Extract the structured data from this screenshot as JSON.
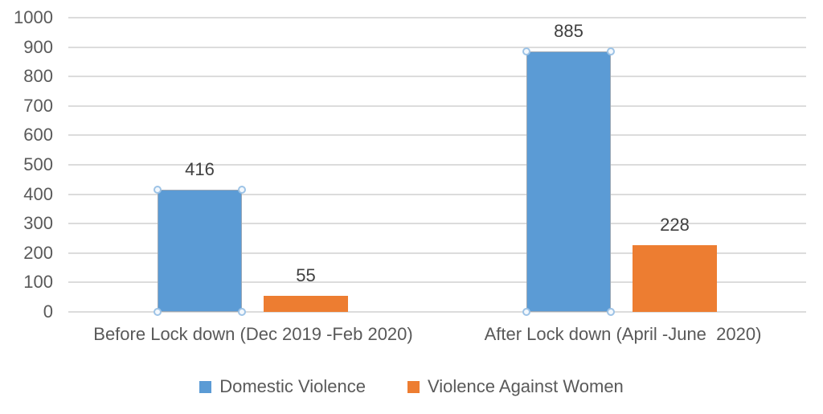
{
  "chart_data": {
    "type": "bar",
    "categories": [
      "Before Lock down (Dec 2019 -Feb 2020)",
      "After Lock down (April -June  2020)"
    ],
    "series": [
      {
        "name": "Domestic Violence",
        "values": [
          416,
          885
        ],
        "color": "#5B9BD5",
        "selected": true
      },
      {
        "name": "Violence Against Women",
        "values": [
          55,
          228
        ],
        "color": "#ED7D31",
        "selected": false
      }
    ],
    "data_labels": {
      "Domestic Violence": [
        "416",
        "885"
      ],
      "Violence Against Women": [
        "55",
        "228"
      ]
    },
    "ylim": [
      0,
      1000
    ],
    "ytick_step": 100,
    "yticks": [
      "0",
      "100",
      "200",
      "300",
      "400",
      "500",
      "600",
      "700",
      "800",
      "900",
      "1000"
    ],
    "grid": true,
    "legend_position": "bottom",
    "title": "",
    "xlabel": "",
    "ylabel": ""
  },
  "colors": {
    "background": "#FFFFFF",
    "gridline": "#DCDCDC",
    "axis_text": "#595959",
    "data_label_text": "#404040",
    "series_blue": "#5B9BD5",
    "series_orange": "#ED7D31",
    "selected_bar_border": "#9AA7B5",
    "selection_handle_border": "#9DC3E6",
    "selection_handle_fill": "#F3F8FD"
  }
}
